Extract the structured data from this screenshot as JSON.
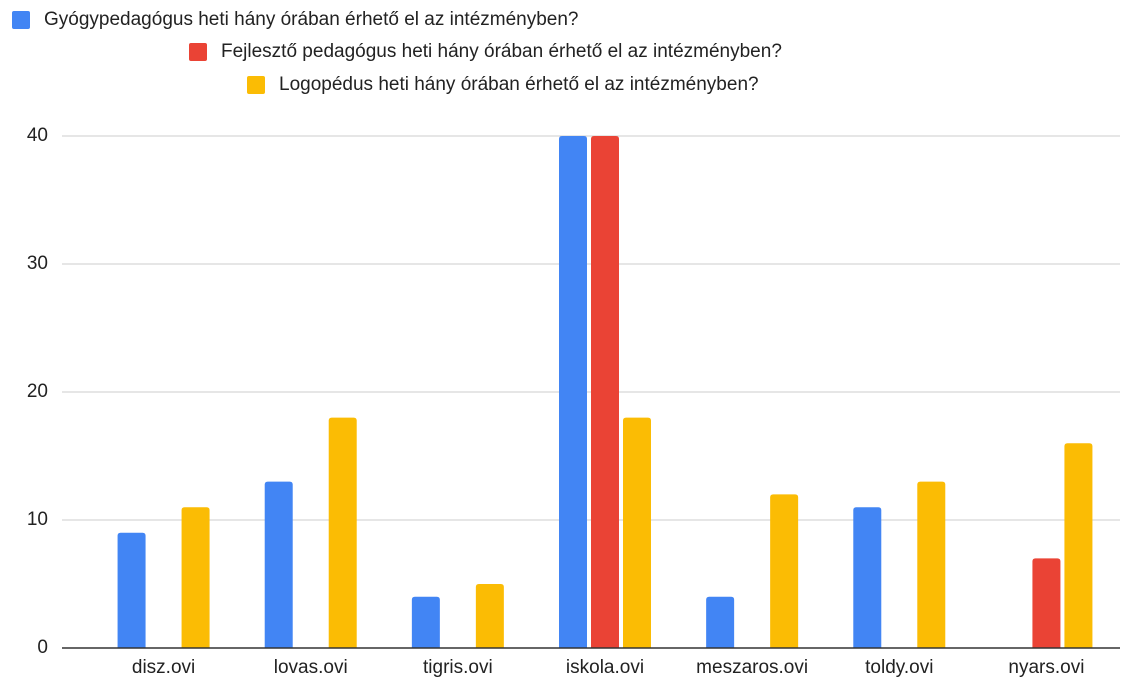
{
  "chart_data": {
    "type": "bar",
    "categories": [
      "disz.ovi",
      "lovas.ovi",
      "tigris.ovi",
      "iskola.ovi",
      "meszaros.ovi",
      "toldy.ovi",
      "nyars.ovi"
    ],
    "series": [
      {
        "name": "Gyógypedagógus heti hány órában érhető el az intézményben?",
        "color": "#4285f4",
        "values": [
          9,
          13,
          4,
          40,
          4,
          11,
          null
        ]
      },
      {
        "name": "Fejlesztő pedagógus heti hány órában érhető el az intézményben?",
        "color": "#ea4335",
        "values": [
          null,
          null,
          null,
          40,
          null,
          null,
          7
        ]
      },
      {
        "name": "Logopédus heti hány órában érhető el az intézményben?",
        "color": "#fbbc04",
        "values": [
          11,
          18,
          5,
          18,
          12,
          13,
          16
        ]
      }
    ],
    "ylim": [
      0,
      40
    ],
    "yticks": [
      0,
      10,
      20,
      30,
      40
    ],
    "grid": true,
    "legend": "top"
  }
}
